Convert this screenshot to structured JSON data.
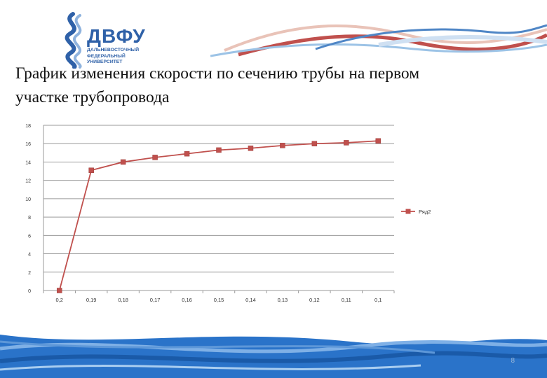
{
  "logo": {
    "name": "ДВФУ",
    "subtitle": "ДАЛЬНЕВОСТОЧНЫЙ\nФЕДЕРАЛЬНЫЙ\nУНИВЕРСИТЕТ"
  },
  "title": "График изменения скорости по сечению трубы на первом участке трубопровода",
  "page_number": "8",
  "colors": {
    "series": "#c0504d",
    "brand_blue": "#2f61a8",
    "grid": "#9a9a9a",
    "footer_blue": "#2a73c9"
  },
  "chart_data": {
    "type": "line",
    "categories": [
      "0,2",
      "0,19",
      "0,18",
      "0,17",
      "0,16",
      "0,15",
      "0,14",
      "0,13",
      "0,12",
      "0,11",
      "0,1"
    ],
    "y_ticks": [
      "0",
      "2",
      "4",
      "6",
      "8",
      "10",
      "12",
      "14",
      "16",
      "18"
    ],
    "ylim": [
      0,
      18
    ],
    "grid": true,
    "legend_position": "right",
    "series": [
      {
        "name": "Ряд2",
        "values": [
          0,
          13.1,
          14.0,
          14.5,
          14.9,
          15.3,
          15.5,
          15.8,
          16.0,
          16.1,
          16.3
        ]
      }
    ]
  }
}
